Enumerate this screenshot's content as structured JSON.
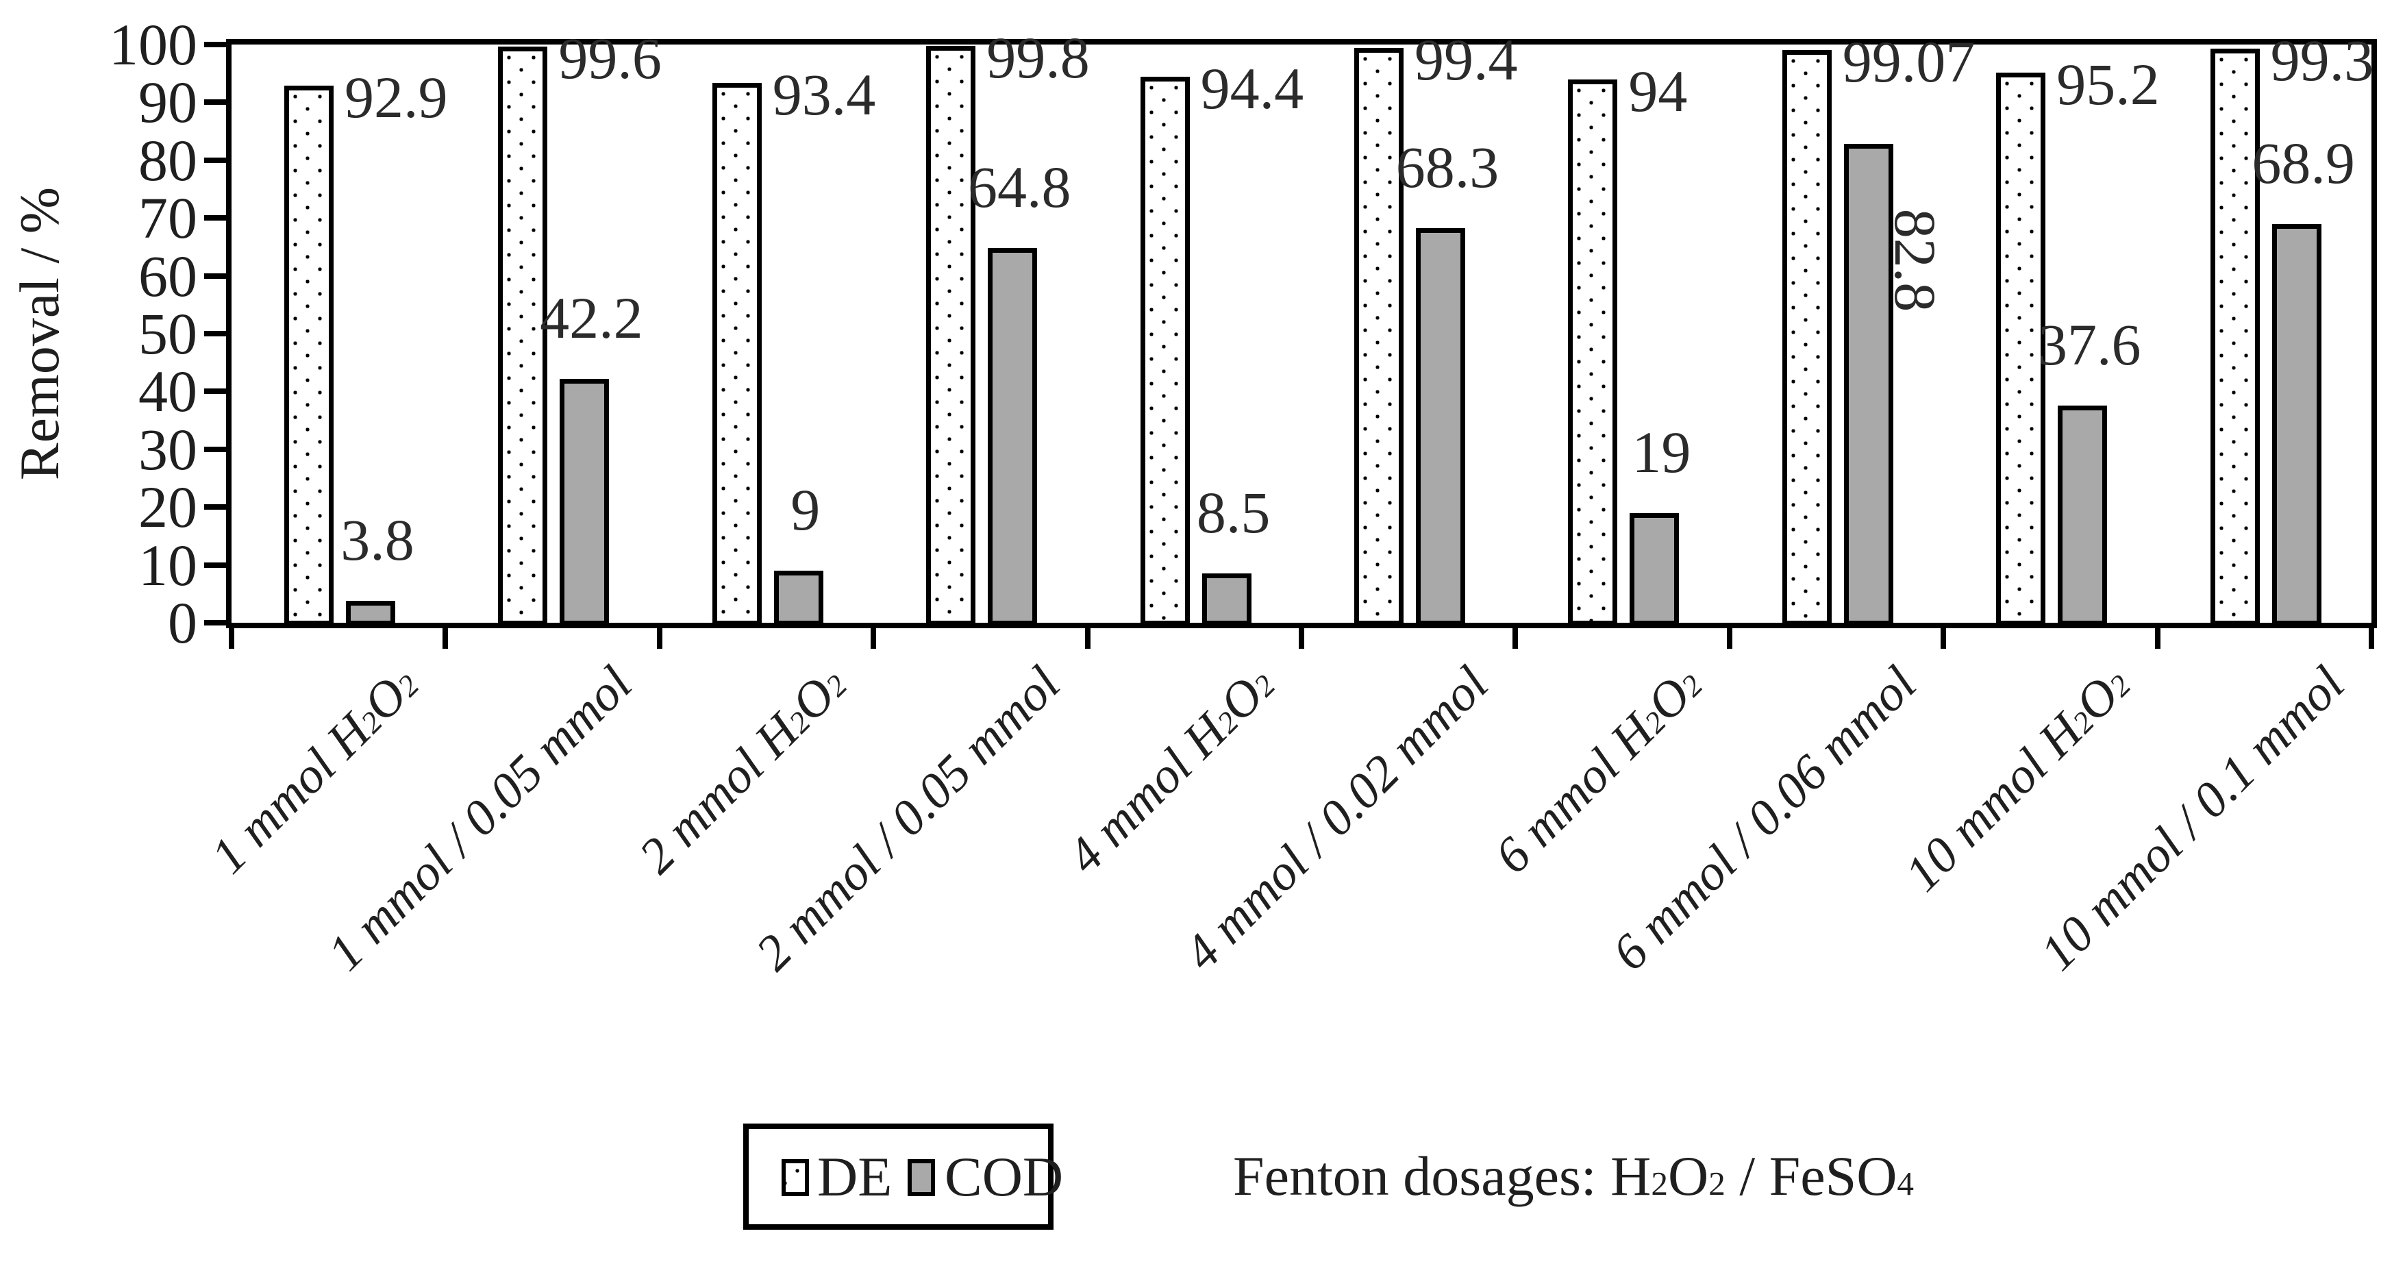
{
  "chart_data": {
    "type": "bar",
    "title": "",
    "ylabel": "Removal / %",
    "ylim": [
      0,
      100
    ],
    "y_ticks": [
      0,
      10,
      20,
      30,
      40,
      50,
      60,
      70,
      80,
      90,
      100
    ],
    "grid": false,
    "legend_position": "bottom-left",
    "annotation_html": "Fenton dosages: H<sub>2</sub>O<sub>2</sub> / FeSO<sub>4</sub>",
    "categories_html": [
      "1 mmol H<sub>2</sub>O<sub>2</sub>",
      "1 mmol / 0.05 mmol",
      "2 mmol H<sub>2</sub>O<sub>2</sub>",
      "2 mmol / 0.05 mmol",
      "4 mmol H<sub>2</sub>O<sub>2</sub>",
      "4 mmol / 0.02 mmol",
      "6 mmol H<sub>2</sub>O<sub>2</sub>",
      "6 mmol / 0.06 mmol",
      "10 mmol H<sub>2</sub>O<sub>2</sub>",
      "10 mmol / 0.1 mmol"
    ],
    "series": [
      {
        "name": "DE",
        "style": "white-dotted",
        "values": [
          92.9,
          99.6,
          93.4,
          99.8,
          94.4,
          99.4,
          94,
          99.07,
          95.2,
          99.3
        ],
        "labels": [
          "92.9",
          "99.6",
          "93.4",
          "99.8",
          "94.4",
          "99.4",
          "94",
          "99.07",
          "95.2",
          "99.3"
        ]
      },
      {
        "name": "COD",
        "style": "gray-solid",
        "color": "#a9a9a9",
        "values": [
          3.8,
          42.2,
          9,
          64.8,
          8.5,
          68.3,
          19,
          82.8,
          37.6,
          68.9
        ],
        "labels": [
          "3.8",
          "42.2",
          "9",
          "64.8",
          "8.5",
          "68.3",
          "19",
          "82.8",
          "37.6",
          "68.9"
        ],
        "rotated_label_indices": [
          7
        ]
      }
    ]
  },
  "legend": {
    "items": [
      {
        "label": "DE",
        "swatch": "dotted-swatch-icon"
      },
      {
        "label": "COD",
        "swatch": "gray-swatch-icon"
      }
    ]
  },
  "colors": {
    "bar_border": "#000000",
    "cod_fill": "#a9a9a9",
    "axis": "#000000",
    "text": "#1f1f1f"
  }
}
